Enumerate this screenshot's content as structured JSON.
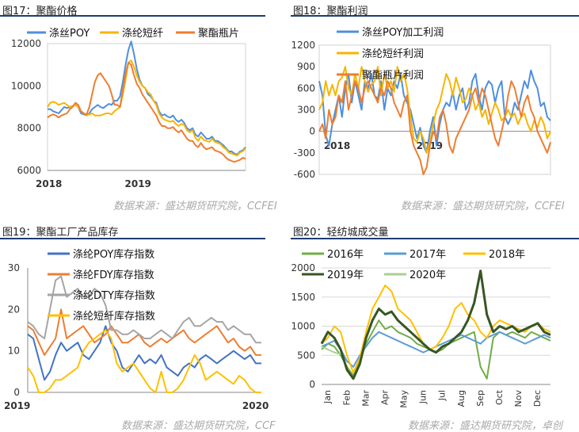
{
  "source_note": "数据来源：盛达期货研究院，CCFEI",
  "source_note_cut": "数据来源：盛达期货研究院，CCF",
  "source_note_4": "数据来源：盛达期货研究院，卓创",
  "chart_data": [
    {
      "type": "line",
      "title": "图17：聚酯价格",
      "x_ticks": [
        "2018",
        "2019"
      ],
      "ylim": [
        6000,
        12000
      ],
      "y_ticks": [
        "6000",
        "8000",
        "10000",
        "12000"
      ],
      "legend_position": "top",
      "series": [
        {
          "name": "涤丝POY",
          "color": "#4f8fdd",
          "values": [
            8900,
            8900,
            8800,
            8750,
            8700,
            8850,
            9000,
            8950,
            9000,
            9050,
            9100,
            9000,
            8700,
            8650,
            8600,
            8700,
            8900,
            9000,
            9100,
            9000,
            8950,
            9050,
            9150,
            9100,
            9300,
            9300,
            9500,
            10200,
            11000,
            11700,
            12100,
            11500,
            10800,
            10300,
            10000,
            9900,
            9600,
            9500,
            9300,
            9200,
            8800,
            8600,
            8650,
            8550,
            8500,
            8600,
            8400,
            8300,
            8400,
            8250,
            8000,
            7900,
            8000,
            7700,
            7600,
            7800,
            7650,
            7500,
            7500,
            7600,
            7400,
            7400,
            7300,
            7200,
            7050,
            6900,
            6900,
            6800,
            6750,
            6900,
            6950,
            7100
          ]
        },
        {
          "name": "涤纶短纤",
          "color": "#f7b500",
          "values": [
            9000,
            9200,
            9250,
            9200,
            9100,
            9150,
            9200,
            9100,
            9000,
            9050,
            9100,
            9000,
            8800,
            8700,
            8600,
            8650,
            8700,
            8600,
            8600,
            8600,
            8650,
            8700,
            8700,
            8650,
            8800,
            8900,
            9000,
            9600,
            10300,
            11100,
            11200,
            10900,
            10500,
            10200,
            10000,
            9900,
            9700,
            9600,
            9300,
            9100,
            8700,
            8500,
            8400,
            8350,
            8300,
            8350,
            8200,
            8100,
            8200,
            8150,
            7900,
            7800,
            7900,
            7550,
            7400,
            7600,
            7450,
            7400,
            7350,
            7500,
            7350,
            7300,
            7250,
            7100,
            7000,
            6850,
            6800,
            6750,
            6700,
            6850,
            6900,
            7050
          ]
        },
        {
          "name": "聚酯瓶片",
          "color": "#ee7d31",
          "values": [
            8500,
            8600,
            8650,
            8600,
            8500,
            8600,
            8650,
            8700,
            8900,
            9000,
            9200,
            9100,
            8800,
            8700,
            8650,
            9000,
            9600,
            10200,
            10500,
            10600,
            10400,
            10200,
            10000,
            9600,
            9100,
            9100,
            9000,
            9800,
            10600,
            11100,
            11000,
            10500,
            10100,
            9900,
            9600,
            9400,
            9200,
            9000,
            8800,
            8600,
            8300,
            8100,
            8100,
            8000,
            8000,
            8050,
            7900,
            7800,
            7900,
            7700,
            7500,
            7400,
            7400,
            7200,
            7100,
            7300,
            7100,
            7000,
            7050,
            7100,
            6950,
            6900,
            6850,
            6750,
            6600,
            6500,
            6450,
            6400,
            6450,
            6500,
            6600,
            6550
          ]
        }
      ]
    },
    {
      "type": "line",
      "title": "图18：聚酯利润",
      "x_ticks": [
        "2018",
        "2019"
      ],
      "ylim": [
        -600,
        1200
      ],
      "y_ticks": [
        "-600",
        "-300",
        "0",
        "300",
        "600",
        "900",
        "1200"
      ],
      "legend_position": "top",
      "series": [
        {
          "name": "涤丝POY加工利润",
          "color": "#4f8fdd",
          "values": [
            700,
            500,
            -50,
            -200,
            100,
            300,
            500,
            200,
            600,
            800,
            400,
            700,
            500,
            300,
            700,
            600,
            800,
            500,
            450,
            700,
            300,
            600,
            500,
            700,
            600,
            800,
            500,
            400,
            300,
            100,
            -100,
            50,
            -200,
            -300,
            0,
            200,
            -200,
            100,
            300,
            400,
            350,
            550,
            300,
            500,
            600,
            300,
            400,
            700,
            800,
            500,
            300,
            600,
            700,
            650,
            400,
            600,
            700,
            200,
            100,
            200,
            400,
            300,
            500,
            700,
            600,
            850,
            700,
            600,
            350,
            400,
            200,
            150
          ]
        },
        {
          "name": "涤纶短纤利润",
          "color": "#f7b500",
          "values": [
            300,
            400,
            700,
            500,
            650,
            500,
            700,
            750,
            900,
            600,
            500,
            800,
            600,
            900,
            700,
            550,
            650,
            700,
            900,
            500,
            800,
            600,
            700,
            550,
            900,
            700,
            800,
            600,
            200,
            -100,
            -150,
            0,
            -100,
            -300,
            -150,
            100,
            300,
            400,
            600,
            800,
            700,
            500,
            750,
            600,
            400,
            450,
            600,
            500,
            300,
            400,
            200,
            300,
            100,
            250,
            400,
            300,
            150,
            200,
            300,
            200,
            250,
            100,
            200,
            250,
            100,
            0,
            150,
            50,
            200,
            100,
            -100,
            0
          ]
        },
        {
          "name": "聚酯瓶片利润",
          "color": "#ee7d31",
          "values": [
            0,
            100,
            -100,
            300,
            100,
            200,
            500,
            400,
            700,
            300,
            500,
            700,
            600,
            400,
            600,
            700,
            600,
            500,
            400,
            600,
            500,
            700,
            600,
            400,
            300,
            200,
            400,
            500,
            0,
            -200,
            -300,
            -400,
            -600,
            -500,
            -200,
            0,
            -100,
            200,
            300,
            100,
            -200,
            -300,
            -100,
            0,
            100,
            200,
            300,
            500,
            600,
            400,
            600,
            500,
            300,
            100,
            -100,
            -200,
            0,
            200,
            500,
            700,
            600,
            400,
            200,
            400,
            500,
            300,
            200,
            0,
            -100,
            -200,
            -300,
            -150
          ]
        }
      ]
    },
    {
      "type": "line",
      "title": "图19：聚酯工厂产品库存",
      "x_ticks": [
        "2019",
        "2020"
      ],
      "ylim": [
        0,
        30
      ],
      "y_ticks": [
        "0",
        "10",
        "20",
        "30"
      ],
      "legend_position": "top",
      "series": [
        {
          "name": "涤纶POY库存指数",
          "color": "#4472c4",
          "values": [
            14,
            13,
            8,
            3,
            5,
            9,
            12,
            10,
            11,
            12,
            9,
            8,
            10,
            12,
            16,
            12,
            10,
            6,
            5,
            7,
            9,
            7,
            8,
            7,
            9,
            6,
            5,
            4,
            6,
            7,
            6,
            8,
            9,
            8,
            7,
            8,
            9,
            10,
            9,
            8,
            9,
            7,
            7
          ]
        },
        {
          "name": "涤纶FDY库存指数",
          "color": "#ed7d31",
          "values": [
            16,
            15,
            12,
            9,
            11,
            13,
            20,
            13,
            14,
            15,
            16,
            14,
            12,
            13,
            14,
            16,
            14,
            12,
            12,
            13,
            14,
            12,
            11,
            12,
            13,
            12,
            13,
            14,
            15,
            13,
            12,
            13,
            14,
            15,
            16,
            14,
            12,
            13,
            11,
            10,
            11,
            9,
            9
          ]
        },
        {
          "name": "涤纶DTY库存指数",
          "color": "#a5a5a5",
          "values": [
            17,
            16,
            14,
            13,
            20,
            27,
            28,
            23,
            24,
            25,
            23,
            23,
            25,
            24,
            21,
            15,
            15,
            14,
            14,
            15,
            14,
            13,
            13,
            14,
            15,
            14,
            13,
            15,
            17,
            18,
            16,
            16,
            17,
            18,
            17,
            17,
            15,
            16,
            15,
            14,
            14,
            12,
            12
          ]
        },
        {
          "name": "涤纶短纤库存指数",
          "color": "#ffc000",
          "values": [
            6,
            4,
            0,
            0,
            1,
            3,
            3,
            4,
            5,
            6,
            10,
            12,
            13,
            14,
            15,
            13,
            7,
            5,
            6,
            7,
            5,
            3,
            1,
            0,
            5,
            0,
            0,
            1,
            3,
            6,
            9,
            7,
            3,
            4,
            5,
            4,
            3,
            2,
            4,
            3,
            1,
            0,
            0
          ]
        }
      ]
    },
    {
      "type": "line",
      "title": "图20：轻纺城成交量",
      "x_ticks": [
        "Jan",
        "Feb",
        "Mar",
        "Apr",
        "May",
        "Jun",
        "Jul",
        "Aug",
        "Sep",
        "Oct",
        "Nov",
        "Dec"
      ],
      "ylim": [
        0,
        2000
      ],
      "y_ticks": [
        "0",
        "500",
        "1000",
        "1500",
        "2000"
      ],
      "legend_position": "top",
      "series": [
        {
          "name": "2016年",
          "color": "#70ad47",
          "values": [
            600,
            700,
            650,
            500,
            300,
            150,
            400,
            700,
            900,
            1100,
            950,
            1000,
            900,
            850,
            800,
            700,
            650,
            600,
            550,
            600,
            700,
            750,
            800,
            850,
            900,
            300,
            100,
            800,
            900,
            850,
            900,
            850,
            800,
            900,
            850,
            800,
            750
          ]
        },
        {
          "name": "2017年",
          "color": "#5b9bd5",
          "values": [
            650,
            700,
            750,
            600,
            400,
            300,
            500,
            650,
            800,
            900,
            850,
            800,
            750,
            700,
            650,
            600,
            550,
            600,
            650,
            700,
            750,
            800,
            850,
            800,
            750,
            700,
            800,
            850,
            900,
            850,
            800,
            750,
            700,
            750,
            800,
            850,
            800
          ]
        },
        {
          "name": "2018年",
          "color": "#ffc000",
          "values": [
            700,
            800,
            1000,
            900,
            500,
            200,
            450,
            900,
            1300,
            1500,
            1700,
            1600,
            1300,
            1200,
            1100,
            900,
            700,
            600,
            650,
            800,
            1000,
            1300,
            1400,
            1200,
            1100,
            900,
            800,
            1000,
            1100,
            1050,
            1000,
            950,
            900,
            1000,
            1050,
            950,
            900
          ]
        },
        {
          "name": "2019年",
          "color": "#375623",
          "values": [
            700,
            900,
            800,
            600,
            250,
            100,
            350,
            800,
            1100,
            1300,
            1200,
            1250,
            1100,
            1000,
            900,
            800,
            700,
            600,
            550,
            650,
            700,
            800,
            900,
            1100,
            1400,
            1950,
            1200,
            900,
            1000,
            950,
            1000,
            900,
            950,
            1000,
            1050,
            900,
            850
          ]
        },
        {
          "name": "2020年",
          "color": "#a9d18e",
          "values": [
            650,
            600,
            550,
            520
          ]
        }
      ]
    }
  ]
}
